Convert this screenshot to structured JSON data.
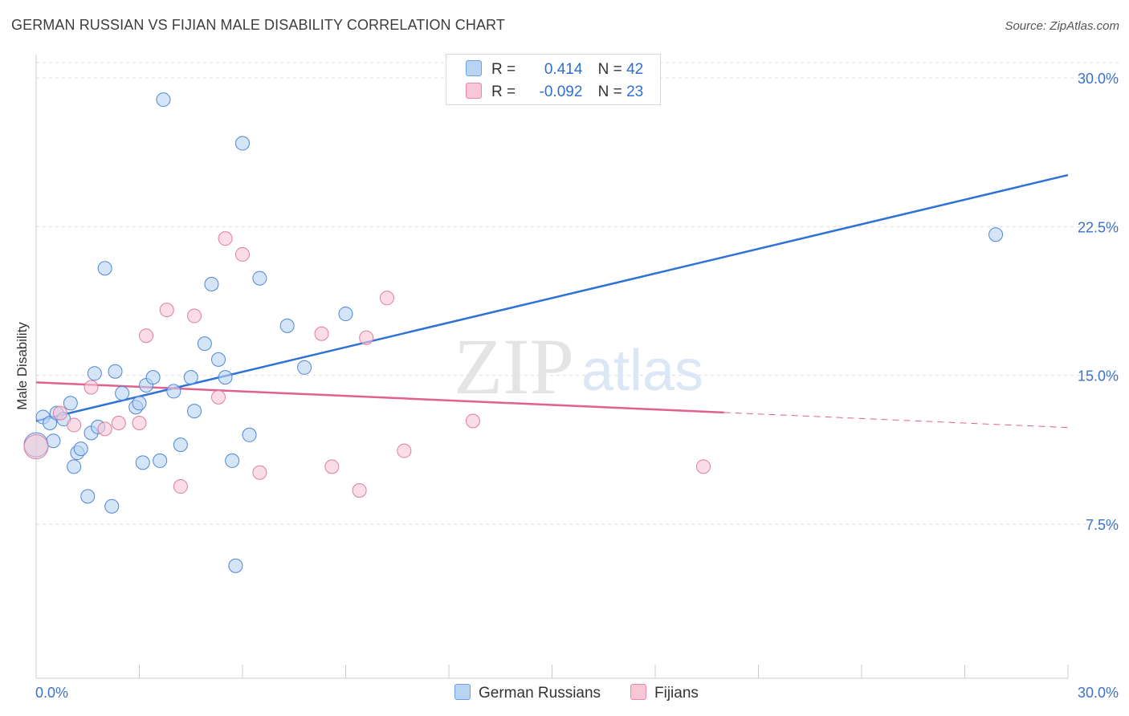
{
  "title": "GERMAN RUSSIAN VS FIJIAN MALE DISABILITY CORRELATION CHART",
  "source": "Source: ZipAtlas.com",
  "watermark": {
    "zip": "ZIP",
    "atlas": "atlas"
  },
  "legend": {
    "r_label": "R =",
    "n_label": "N =",
    "rows": [
      {
        "series": "German Russians",
        "r": "0.414",
        "n": "42",
        "color": "#a9c8f0",
        "border": "#6f9fe0"
      },
      {
        "series": "Fijians",
        "r": "-0.092",
        "n": "23",
        "color": "#f7c1d1",
        "border": "#e88aa8"
      }
    ]
  },
  "chart_data": {
    "type": "scatter",
    "title": "GERMAN RUSSIAN VS FIJIAN MALE DISABILITY CORRELATION CHART",
    "xlabel": "",
    "ylabel": "Male Disability",
    "xlim": [
      0,
      30
    ],
    "ylim": [
      0,
      31
    ],
    "x_tick_labels": [
      "0.0%",
      "30.0%"
    ],
    "y_ticks": [
      7.5,
      15.0,
      22.5,
      30.0
    ],
    "y_tick_labels": [
      "7.5%",
      "15.0%",
      "22.5%",
      "30.0%"
    ],
    "grid": true,
    "series": [
      {
        "name": "German Russians",
        "color": "#4f86d8",
        "fill": "#b9d3f3",
        "points": [
          [
            0.0,
            11.5
          ],
          [
            0.2,
            12.9
          ],
          [
            0.4,
            12.6
          ],
          [
            0.5,
            11.7
          ],
          [
            0.6,
            13.1
          ],
          [
            0.8,
            12.8
          ],
          [
            1.0,
            13.6
          ],
          [
            1.1,
            10.4
          ],
          [
            1.2,
            11.1
          ],
          [
            1.3,
            11.3
          ],
          [
            1.5,
            8.9
          ],
          [
            1.6,
            12.1
          ],
          [
            1.7,
            15.1
          ],
          [
            1.8,
            12.4
          ],
          [
            2.0,
            20.4
          ],
          [
            2.2,
            8.4
          ],
          [
            2.3,
            15.2
          ],
          [
            2.5,
            14.1
          ],
          [
            2.9,
            13.4
          ],
          [
            3.0,
            13.6
          ],
          [
            3.1,
            10.6
          ],
          [
            3.2,
            14.5
          ],
          [
            3.4,
            14.9
          ],
          [
            3.6,
            10.7
          ],
          [
            3.7,
            28.9
          ],
          [
            4.0,
            14.2
          ],
          [
            4.2,
            11.5
          ],
          [
            4.5,
            14.9
          ],
          [
            4.6,
            13.2
          ],
          [
            4.9,
            16.6
          ],
          [
            5.1,
            19.6
          ],
          [
            5.3,
            15.8
          ],
          [
            5.5,
            14.9
          ],
          [
            5.7,
            10.7
          ],
          [
            5.8,
            5.4
          ],
          [
            6.0,
            26.7
          ],
          [
            6.2,
            12.0
          ],
          [
            6.5,
            19.9
          ],
          [
            7.3,
            17.5
          ],
          [
            7.8,
            15.4
          ],
          [
            9.0,
            18.1
          ],
          [
            27.9,
            22.1
          ]
        ]
      },
      {
        "name": "Fijians",
        "color": "#e27d9c",
        "fill": "#f7c7d6",
        "points": [
          [
            0.0,
            11.4
          ],
          [
            0.7,
            13.1
          ],
          [
            1.1,
            12.5
          ],
          [
            1.6,
            14.4
          ],
          [
            2.0,
            12.3
          ],
          [
            2.4,
            12.6
          ],
          [
            3.0,
            12.6
          ],
          [
            3.2,
            17.0
          ],
          [
            3.8,
            18.3
          ],
          [
            4.2,
            9.4
          ],
          [
            4.6,
            18.0
          ],
          [
            5.3,
            13.9
          ],
          [
            5.5,
            21.9
          ],
          [
            6.0,
            21.1
          ],
          [
            6.5,
            10.1
          ],
          [
            8.3,
            17.1
          ],
          [
            8.6,
            10.4
          ],
          [
            9.4,
            9.2
          ],
          [
            9.6,
            16.9
          ],
          [
            10.2,
            18.9
          ],
          [
            10.7,
            11.2
          ],
          [
            12.7,
            12.7
          ],
          [
            19.4,
            10.4
          ]
        ]
      }
    ],
    "trend_lines": [
      {
        "series": "German Russians",
        "x": [
          0,
          30
        ],
        "y": [
          12.7,
          25.1
        ],
        "style": "solid"
      },
      {
        "series": "Fijians",
        "x": [
          0,
          20
        ],
        "y": [
          14.65,
          13.13
        ],
        "style": "solid"
      },
      {
        "series": "Fijians",
        "x": [
          20,
          30
        ],
        "y": [
          13.13,
          12.37
        ],
        "style": "dashed"
      }
    ]
  },
  "bottom_legend": [
    {
      "label": "German Russians",
      "color": "#a9c8f0",
      "border": "#6f9fe0"
    },
    {
      "label": "Fijians",
      "color": "#f7c1d1",
      "border": "#e88aa8"
    }
  ]
}
